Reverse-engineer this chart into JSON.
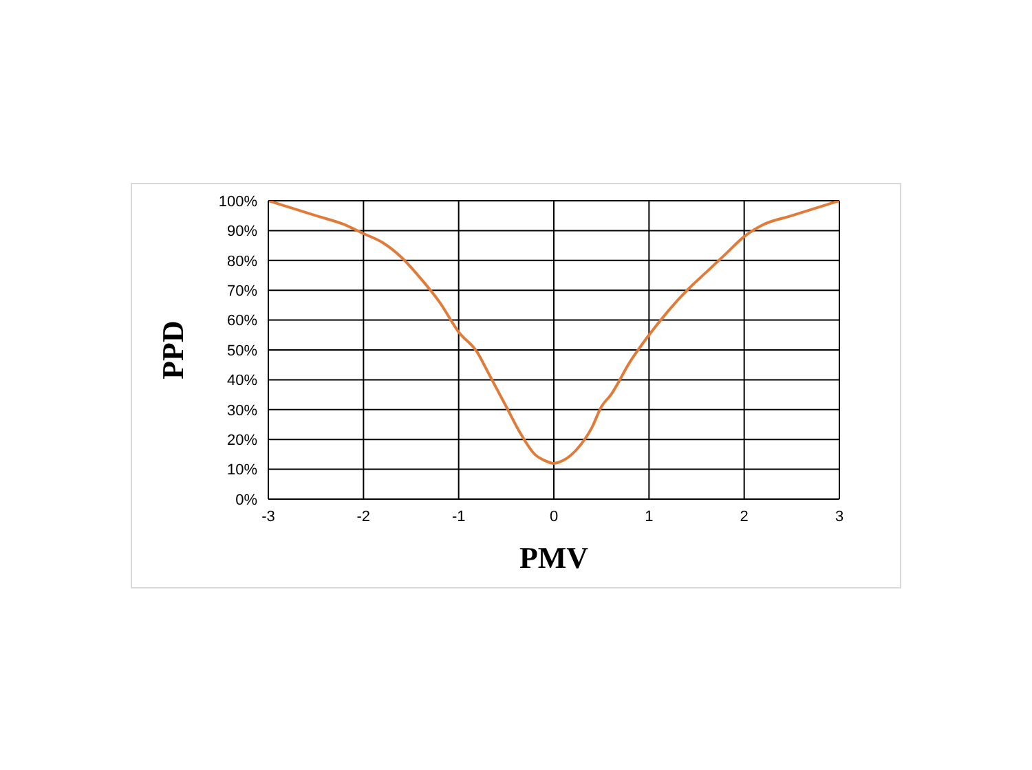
{
  "chart_data": {
    "type": "line",
    "xlabel": "PMV",
    "ylabel": "PPD",
    "x": [
      -3,
      -2.5,
      -2.2,
      -2,
      -1.8,
      -1.6,
      -1.4,
      -1.2,
      -1,
      -0.8,
      -0.7,
      -0.5,
      -0.35,
      -0.2,
      -0.1,
      0,
      0.1,
      0.25,
      0.4,
      0.5,
      0.6,
      0.8,
      1,
      1.2,
      1.4,
      1.6,
      1.8,
      2,
      2.2,
      2.5,
      3
    ],
    "series": [
      {
        "color": "#e07b39",
        "values": [
          100,
          95,
          92,
          89,
          86,
          81,
          74,
          66,
          56,
          49,
          43,
          31,
          22,
          15,
          13,
          12,
          13,
          17,
          24,
          31,
          35,
          46,
          55,
          63,
          70,
          76,
          82,
          88,
          92,
          95,
          100
        ]
      }
    ],
    "xlim": [
      -3,
      3
    ],
    "xticks": [
      -3,
      -2,
      -1,
      0,
      1,
      2,
      3
    ],
    "ylim": [
      0,
      100
    ],
    "yticks": [
      {
        "value": 0,
        "label": "0%"
      },
      {
        "value": 10,
        "label": "10%"
      },
      {
        "value": 20,
        "label": "20%"
      },
      {
        "value": 30,
        "label": "30%"
      },
      {
        "value": 40,
        "label": "40%"
      },
      {
        "value": 50,
        "label": "50%"
      },
      {
        "value": 60,
        "label": "60%"
      },
      {
        "value": 70,
        "label": "70%"
      },
      {
        "value": 80,
        "label": "80%"
      },
      {
        "value": 90,
        "label": "90%"
      },
      {
        "value": 100,
        "label": "100%"
      }
    ],
    "grid": true,
    "marker": "none",
    "line_style": "solid"
  }
}
